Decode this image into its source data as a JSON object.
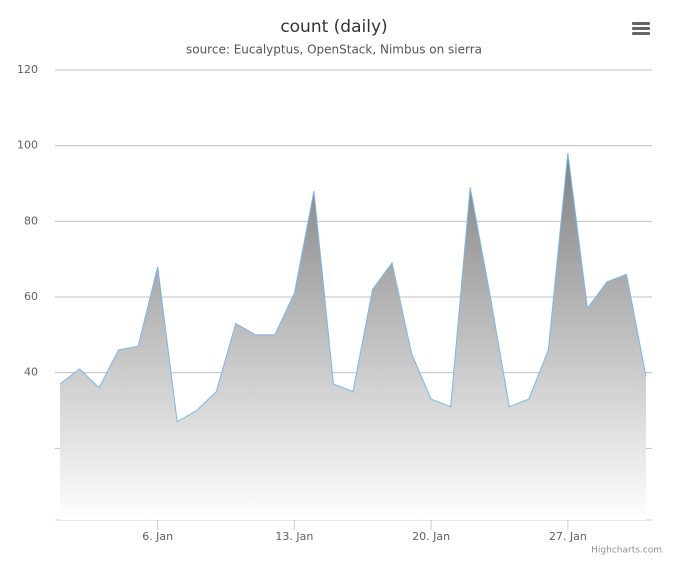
{
  "chart_data": {
    "type": "area",
    "title": "count (daily)",
    "subtitle": "source: Eucalyptus, OpenStack, Nimbus on sierra",
    "categories": [
      null,
      null,
      null,
      null,
      null,
      "6. Jan",
      null,
      null,
      null,
      null,
      null,
      null,
      "13. Jan",
      null,
      null,
      null,
      null,
      null,
      null,
      "20. Jan",
      null,
      null,
      null,
      null,
      null,
      null,
      "27. Jan",
      null,
      null,
      null,
      null
    ],
    "series": [
      {
        "name": "count",
        "color": "#7cb5ec",
        "values": [
          37,
          41,
          36,
          46,
          47,
          68,
          27,
          30,
          35,
          53,
          50,
          50,
          61,
          88,
          37,
          35,
          62,
          69,
          45,
          33,
          31,
          89,
          61,
          31,
          33,
          46,
          98,
          57,
          64,
          66,
          39
        ]
      }
    ],
    "ylim": [
      0,
      120
    ],
    "yticks": [
      {
        "value": 20,
        "label": null
      },
      40,
      60,
      80,
      100,
      120
    ],
    "grid": true,
    "credits": "Highcharts.com"
  }
}
